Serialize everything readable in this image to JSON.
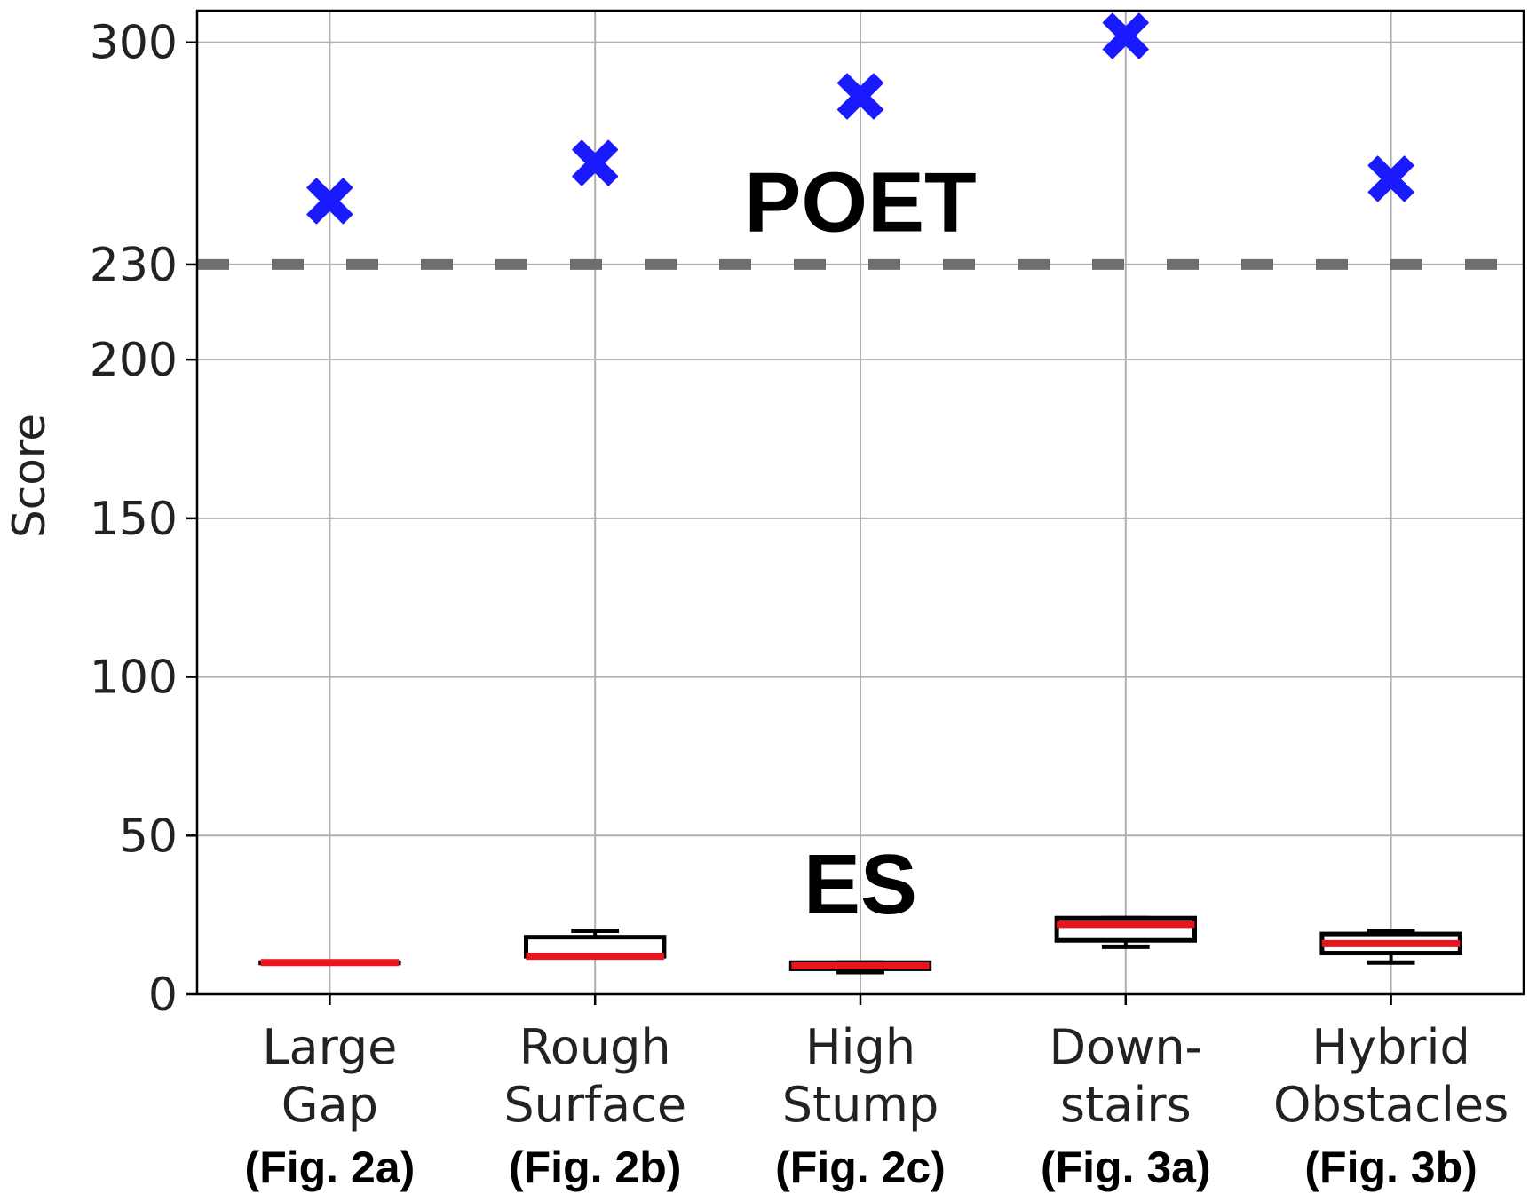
{
  "chart_data": {
    "type": "box",
    "ylabel": "Score",
    "ylim": [
      0,
      310
    ],
    "yticks": [
      0,
      50,
      100,
      150,
      200,
      230,
      300
    ],
    "grid": true,
    "categories": [
      {
        "line1": "Large",
        "line2": "Gap",
        "fig": "(Fig. 2a)"
      },
      {
        "line1": "Rough",
        "line2": "Surface",
        "fig": "(Fig. 2b)"
      },
      {
        "line1": "High",
        "line2": "Stump",
        "fig": "(Fig. 2c)"
      },
      {
        "line1": "Down-",
        "line2": "stairs",
        "fig": "(Fig. 3a)"
      },
      {
        "line1": "Hybrid",
        "line2": "Obstacles",
        "fig": "(Fig. 3b)"
      }
    ],
    "series": [
      {
        "name": "POET",
        "marker": "X",
        "color": "#1a1aff",
        "values": [
          250,
          262,
          283,
          302,
          257
        ]
      },
      {
        "name": "ES",
        "type": "box",
        "color": "#e8141e",
        "boxes": [
          {
            "whisker_low": 10,
            "q1": 10,
            "median": 10,
            "q3": 10,
            "whisker_high": 10
          },
          {
            "whisker_low": 12,
            "q1": 12,
            "median": 12,
            "q3": 18,
            "whisker_high": 20
          },
          {
            "whisker_low": 7,
            "q1": 8,
            "median": 9,
            "q3": 10,
            "whisker_high": 10
          },
          {
            "whisker_low": 15,
            "q1": 17,
            "median": 22,
            "q3": 24,
            "whisker_high": 24
          },
          {
            "whisker_low": 10,
            "q1": 13,
            "median": 16,
            "q3": 19,
            "whisker_high": 20
          }
        ]
      }
    ],
    "reference_line": {
      "value": 230,
      "style": "dashed",
      "color": "#6e6e6e"
    },
    "annotations": [
      {
        "text": "POET",
        "category_index": 2,
        "y": 250
      },
      {
        "text": "ES",
        "category_index": 2,
        "y": 35
      }
    ]
  }
}
